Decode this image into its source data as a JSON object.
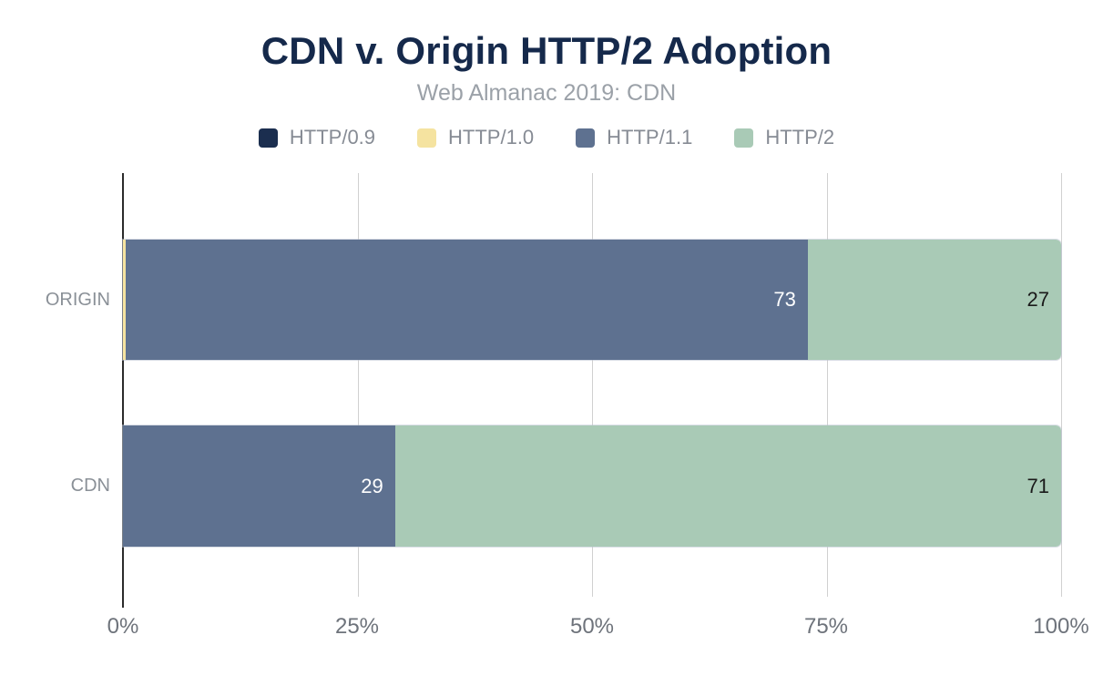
{
  "chart_data": {
    "type": "bar",
    "variant": "horizontal-stacked-100pct",
    "title": "CDN v. Origin HTTP/2 Adoption",
    "subtitle": "Web Almanac 2019: CDN",
    "categories": [
      "ORIGIN",
      "CDN"
    ],
    "series": [
      {
        "name": "HTTP/0.9",
        "color": "#1b2e4f",
        "label_color": "#ffffff",
        "values": [
          0,
          0
        ],
        "labels": [
          "",
          ""
        ]
      },
      {
        "name": "HTTP/1.0",
        "color": "#f5e3a0",
        "label_color": "#1a1a1a",
        "values": [
          0.3,
          0
        ],
        "labels": [
          "",
          ""
        ]
      },
      {
        "name": "HTTP/1.1",
        "color": "#5e7190",
        "label_color": "#ffffff",
        "values": [
          72.7,
          29
        ],
        "labels": [
          "73",
          "29"
        ]
      },
      {
        "name": "HTTP/2",
        "color": "#a9cab6",
        "label_color": "#1a1a1a",
        "values": [
          27,
          71
        ],
        "labels": [
          "27",
          "71"
        ]
      }
    ],
    "x_ticks": [
      "0%",
      "25%",
      "50%",
      "75%",
      "100%"
    ],
    "x_tick_positions": [
      0,
      25,
      50,
      75,
      100
    ],
    "xlim": [
      0,
      100
    ],
    "grid": "vertical",
    "legend_position": "top",
    "colors": {
      "title": "#15294b",
      "subtitle": "#9ba1a8",
      "legend_text": "#868b94",
      "category_label": "#8a9097",
      "tick_label": "#6e737b",
      "gridline": "#d0d0d0",
      "axis": "#2b2b2b",
      "background": "#ffffff"
    }
  }
}
